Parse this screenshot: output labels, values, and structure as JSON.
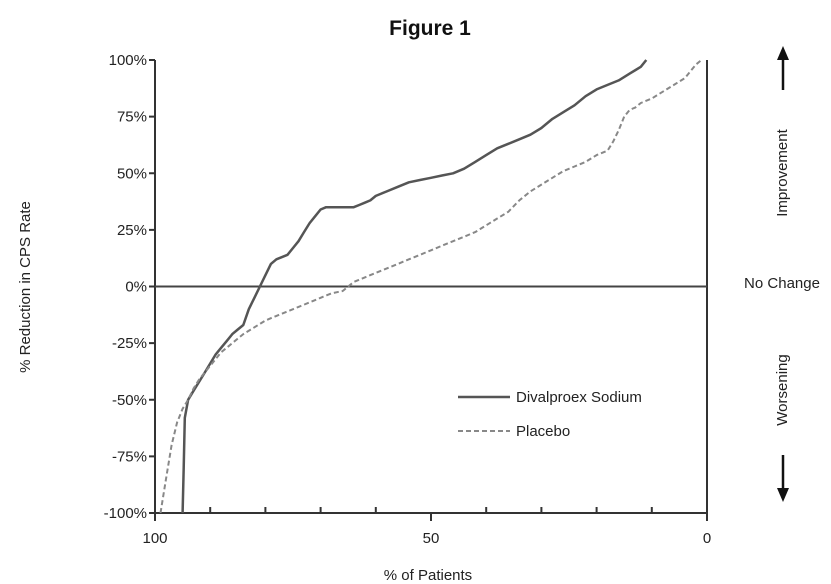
{
  "chart_data": {
    "type": "line",
    "title": "Figure 1",
    "xlabel": "% of Patients",
    "ylabel": "% Reduction in CPS Rate",
    "xlim": [
      100,
      0
    ],
    "ylim": [
      -100,
      100
    ],
    "x_ticks": [
      {
        "value": 100,
        "label": "100"
      },
      {
        "value": 50,
        "label": "50"
      },
      {
        "value": 0,
        "label": "0"
      }
    ],
    "y_ticks": [
      {
        "value": 100,
        "label": "100%"
      },
      {
        "value": 75,
        "label": "75%"
      },
      {
        "value": 50,
        "label": "50%"
      },
      {
        "value": 25,
        "label": "25%"
      },
      {
        "value": 0,
        "label": "0%"
      },
      {
        "value": -25,
        "label": "-25%"
      },
      {
        "value": -50,
        "label": "-50%"
      },
      {
        "value": -75,
        "label": "-75%"
      },
      {
        "value": -100,
        "label": "-100%"
      }
    ],
    "grid": false,
    "legend_position": "bottom-right",
    "annotations": {
      "improvement": "Improvement",
      "no_change": "No Change",
      "worsening": "Worsening"
    },
    "series": [
      {
        "name": "Divalproex Sodium",
        "color": "#555555",
        "style": "solid",
        "x": [
          95,
          94.8,
          94.6,
          94,
          93,
          92,
          91,
          90,
          89,
          88,
          87,
          86,
          85,
          84,
          83,
          82,
          81,
          80,
          79,
          78,
          77,
          76,
          75,
          74,
          73,
          72,
          71,
          70,
          69,
          68,
          67,
          66,
          65,
          64,
          63,
          62,
          61,
          60,
          59,
          58,
          56,
          54,
          52,
          50,
          48,
          46,
          44,
          42,
          40,
          38,
          36,
          34,
          32,
          30,
          28,
          26,
          24,
          22,
          20,
          18,
          16,
          14,
          12,
          11
        ],
        "y": [
          -100,
          -80,
          -58,
          -50,
          -46,
          -42,
          -38,
          -34,
          -30,
          -27,
          -24,
          -21,
          -19,
          -17,
          -10,
          -5,
          0,
          5,
          10,
          12,
          13,
          14,
          17,
          20,
          24,
          28,
          31,
          34,
          35,
          35,
          35,
          35,
          35,
          35,
          36,
          37,
          38,
          40,
          41,
          42,
          44,
          46,
          47,
          48,
          49,
          50,
          52,
          55,
          58,
          61,
          63,
          65,
          67,
          70,
          74,
          77,
          80,
          84,
          87,
          89,
          91,
          94,
          97,
          100
        ]
      },
      {
        "name": "Placebo",
        "color": "#888888",
        "style": "dashed",
        "x": [
          99,
          98,
          97,
          96,
          95,
          94,
          93,
          92,
          91,
          90,
          89,
          88,
          87,
          86,
          85,
          84,
          82,
          80,
          78,
          76,
          74,
          72,
          70,
          68,
          66,
          65,
          64,
          62,
          60,
          58,
          56,
          54,
          52,
          50,
          48,
          46,
          44,
          42,
          40,
          38,
          36,
          34,
          32,
          30,
          28,
          26,
          24,
          22,
          20,
          18,
          17,
          16,
          15,
          14,
          13,
          12,
          10,
          8,
          6,
          4,
          3,
          2,
          1
        ],
        "y": [
          -100,
          -85,
          -70,
          -60,
          -54,
          -50,
          -45,
          -41,
          -38,
          -35,
          -32,
          -29,
          -27,
          -25,
          -23,
          -21,
          -18,
          -15,
          -13,
          -11,
          -9,
          -7,
          -5,
          -3,
          -2,
          0,
          2,
          4,
          6,
          8,
          10,
          12,
          14,
          16,
          18,
          20,
          22,
          24,
          27,
          30,
          33,
          38,
          42,
          45,
          48,
          51,
          53,
          55,
          58,
          60,
          64,
          69,
          75,
          78,
          79,
          81,
          83,
          86,
          89,
          92,
          95,
          98,
          100
        ]
      }
    ]
  }
}
